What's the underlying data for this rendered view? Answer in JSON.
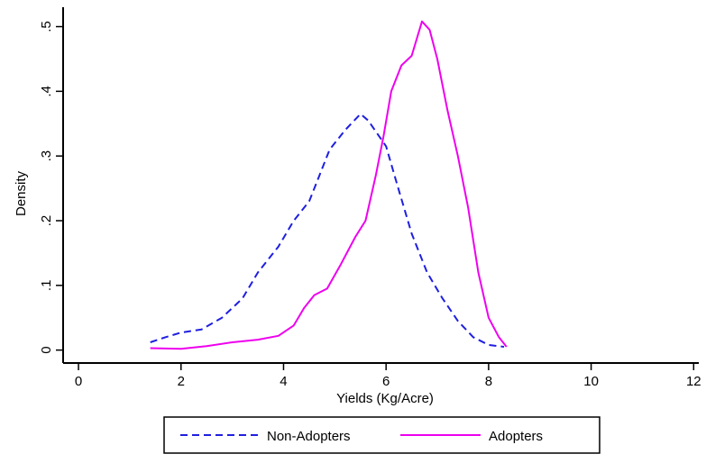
{
  "chart_data": {
    "type": "line",
    "title": "",
    "xlabel": "Yields (Kg/Acre)",
    "ylabel": "Density",
    "xlim": [
      -0.3,
      12.1
    ],
    "ylim": [
      -0.02,
      0.53
    ],
    "x_ticks": [
      0,
      2,
      4,
      6,
      8,
      10,
      12
    ],
    "x_tick_labels": [
      "0",
      "2",
      "4",
      "6",
      "8",
      "10",
      "12"
    ],
    "y_ticks": [
      0,
      0.1,
      0.2,
      0.3,
      0.4,
      0.5
    ],
    "y_tick_labels": [
      "0",
      ".1",
      ".2",
      ".3",
      ".4",
      ".5"
    ],
    "grid": false,
    "legend_position": "bottom",
    "series": [
      {
        "name": "Non-Adopters",
        "color": "#1f1fe0",
        "dash": "dashed",
        "points": [
          [
            1.4,
            0.012
          ],
          [
            1.7,
            0.02
          ],
          [
            2.0,
            0.027
          ],
          [
            2.4,
            0.032
          ],
          [
            2.8,
            0.05
          ],
          [
            3.2,
            0.08
          ],
          [
            3.5,
            0.12
          ],
          [
            3.9,
            0.16
          ],
          [
            4.2,
            0.2
          ],
          [
            4.5,
            0.23
          ],
          [
            4.7,
            0.27
          ],
          [
            4.9,
            0.31
          ],
          [
            5.2,
            0.34
          ],
          [
            5.5,
            0.365
          ],
          [
            5.65,
            0.355
          ],
          [
            6.0,
            0.315
          ],
          [
            6.2,
            0.26
          ],
          [
            6.5,
            0.18
          ],
          [
            6.8,
            0.12
          ],
          [
            7.1,
            0.08
          ],
          [
            7.4,
            0.045
          ],
          [
            7.7,
            0.02
          ],
          [
            8.0,
            0.008
          ],
          [
            8.3,
            0.005
          ]
        ]
      },
      {
        "name": "Adopters",
        "color": "#ee00ee",
        "dash": "solid",
        "points": [
          [
            1.4,
            0.003
          ],
          [
            2.0,
            0.002
          ],
          [
            2.5,
            0.006
          ],
          [
            3.0,
            0.012
          ],
          [
            3.5,
            0.016
          ],
          [
            3.9,
            0.022
          ],
          [
            4.2,
            0.038
          ],
          [
            4.4,
            0.065
          ],
          [
            4.6,
            0.085
          ],
          [
            4.85,
            0.095
          ],
          [
            5.1,
            0.13
          ],
          [
            5.4,
            0.175
          ],
          [
            5.6,
            0.2
          ],
          [
            5.8,
            0.27
          ],
          [
            5.95,
            0.33
          ],
          [
            6.1,
            0.4
          ],
          [
            6.3,
            0.44
          ],
          [
            6.5,
            0.455
          ],
          [
            6.7,
            0.508
          ],
          [
            6.85,
            0.495
          ],
          [
            7.0,
            0.45
          ],
          [
            7.2,
            0.37
          ],
          [
            7.4,
            0.3
          ],
          [
            7.6,
            0.22
          ],
          [
            7.8,
            0.12
          ],
          [
            8.0,
            0.05
          ],
          [
            8.2,
            0.02
          ],
          [
            8.35,
            0.005
          ]
        ]
      }
    ]
  }
}
